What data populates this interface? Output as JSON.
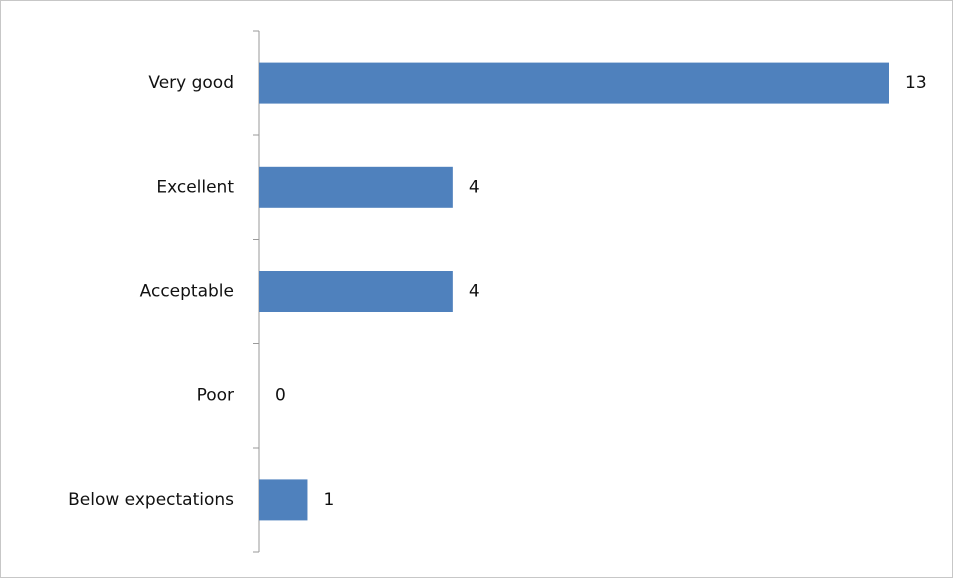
{
  "chart_data": {
    "type": "bar",
    "orientation": "horizontal",
    "categories": [
      "Very good",
      "Excellent",
      "Acceptable",
      "Poor",
      "Below expectations"
    ],
    "values": [
      13,
      4,
      4,
      0,
      1
    ],
    "data_labels": [
      "13",
      "4",
      "4",
      "0",
      "1"
    ],
    "title": "",
    "xlabel": "",
    "ylabel": "",
    "xlim": [
      0,
      13
    ],
    "grid": false,
    "legend": "none",
    "bar_color": "#4f81bd"
  }
}
